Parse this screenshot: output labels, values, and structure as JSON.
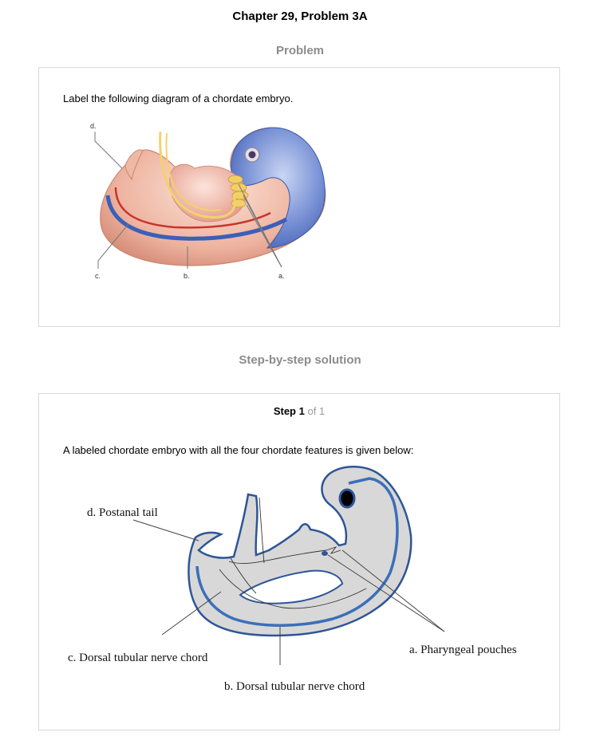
{
  "header": {
    "title": "Chapter 29, Problem 3A"
  },
  "problem": {
    "heading": "Problem",
    "question": "Label the following diagram of a chordate embryo.",
    "labels": {
      "d": "d.",
      "c": "c.",
      "b": "b.",
      "a": "a."
    }
  },
  "solution": {
    "heading": "Step-by-step solution",
    "step_label": "Step 1",
    "step_count": "of 1",
    "text": "A labeled chordate embryo with all the four chordate features is given below:",
    "labels": {
      "d": "d. Postanal tail",
      "c": "c. Dorsal tubular nerve chord",
      "b": "b. Dorsal tubular nerve chord",
      "a": "a. Pharyngeal pouches"
    }
  }
}
